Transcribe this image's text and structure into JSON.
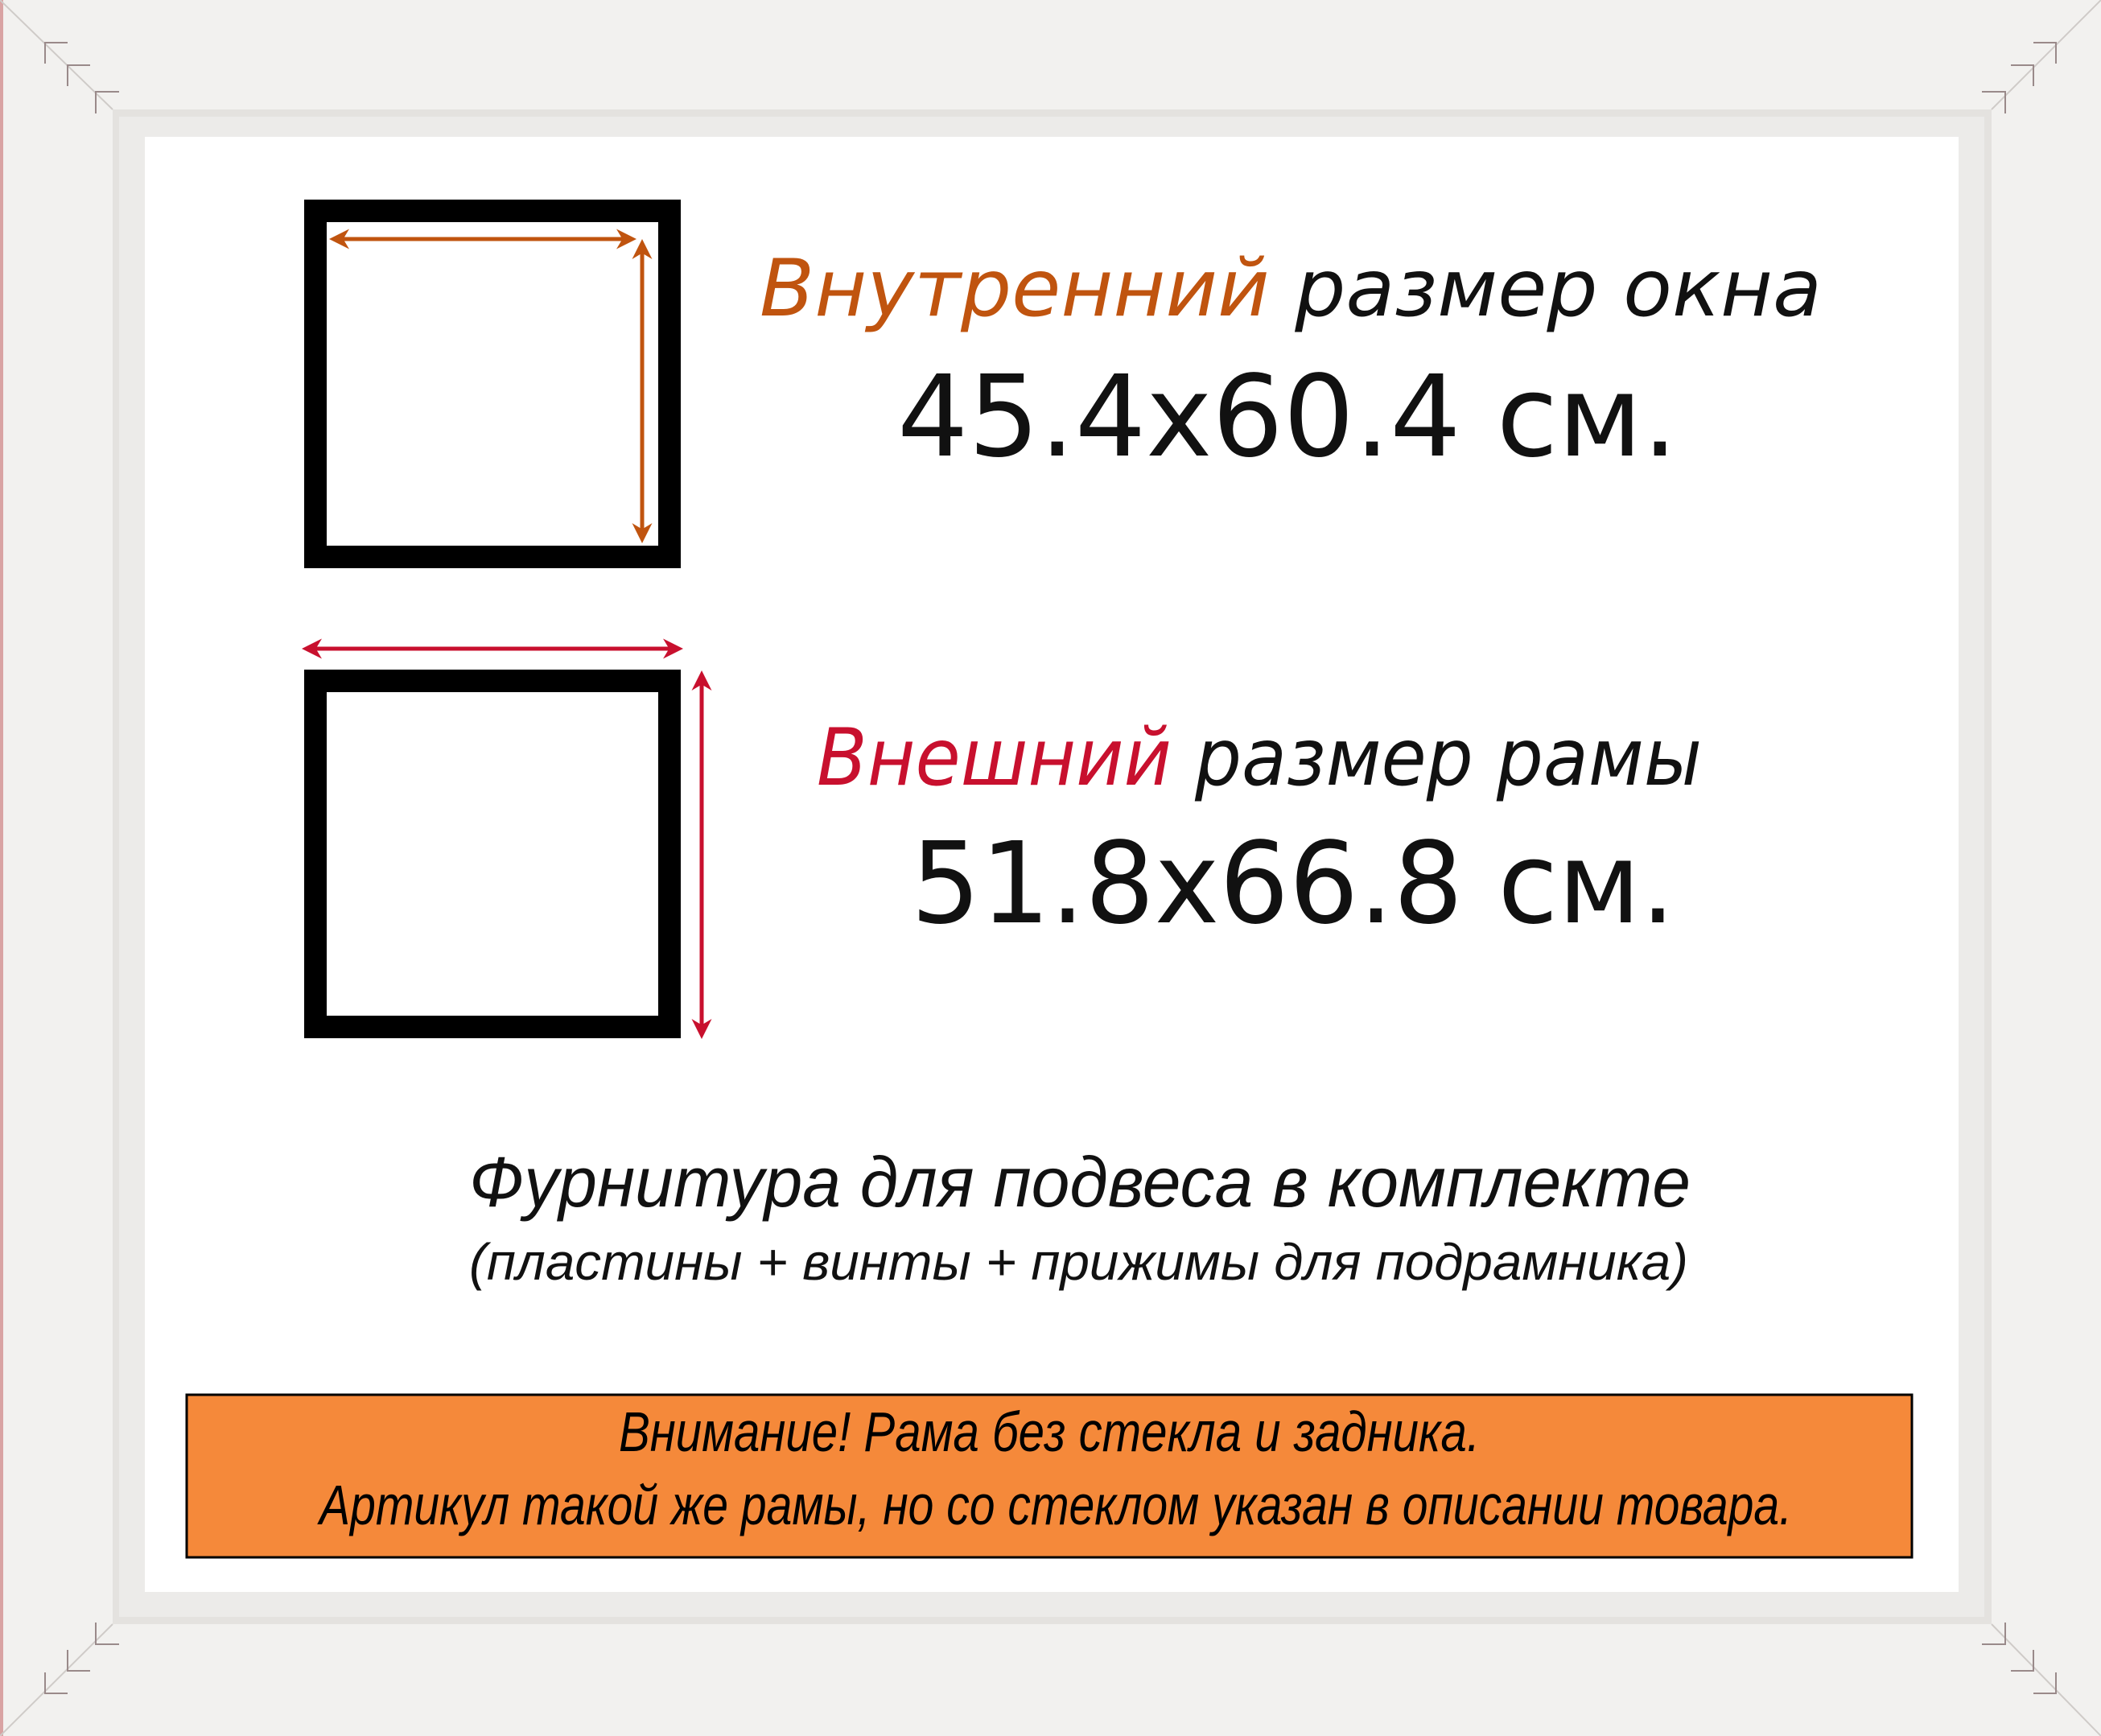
{
  "inner": {
    "label_accent": "Внутренний",
    "label_rest": "размер окна",
    "size": "45.4x60.4 см.",
    "accent_color": "#c0540f"
  },
  "outer": {
    "label_accent": "Внешний",
    "label_rest": "размер рамы",
    "size": "51.8x66.8 см.",
    "accent_color": "#c8102e"
  },
  "hardware": {
    "line1": "Фурнитура для подвеса в комплекте",
    "line2": "(пластины + винты + прижимы для подрамника)"
  },
  "notice": {
    "line1": "Внимание! Рама без стекла и задника.",
    "line2": "Артикул такой же рамы, но со стеклом указан в описании товара.",
    "background": "#f5893a"
  },
  "frame_color": "#f2f1ef"
}
